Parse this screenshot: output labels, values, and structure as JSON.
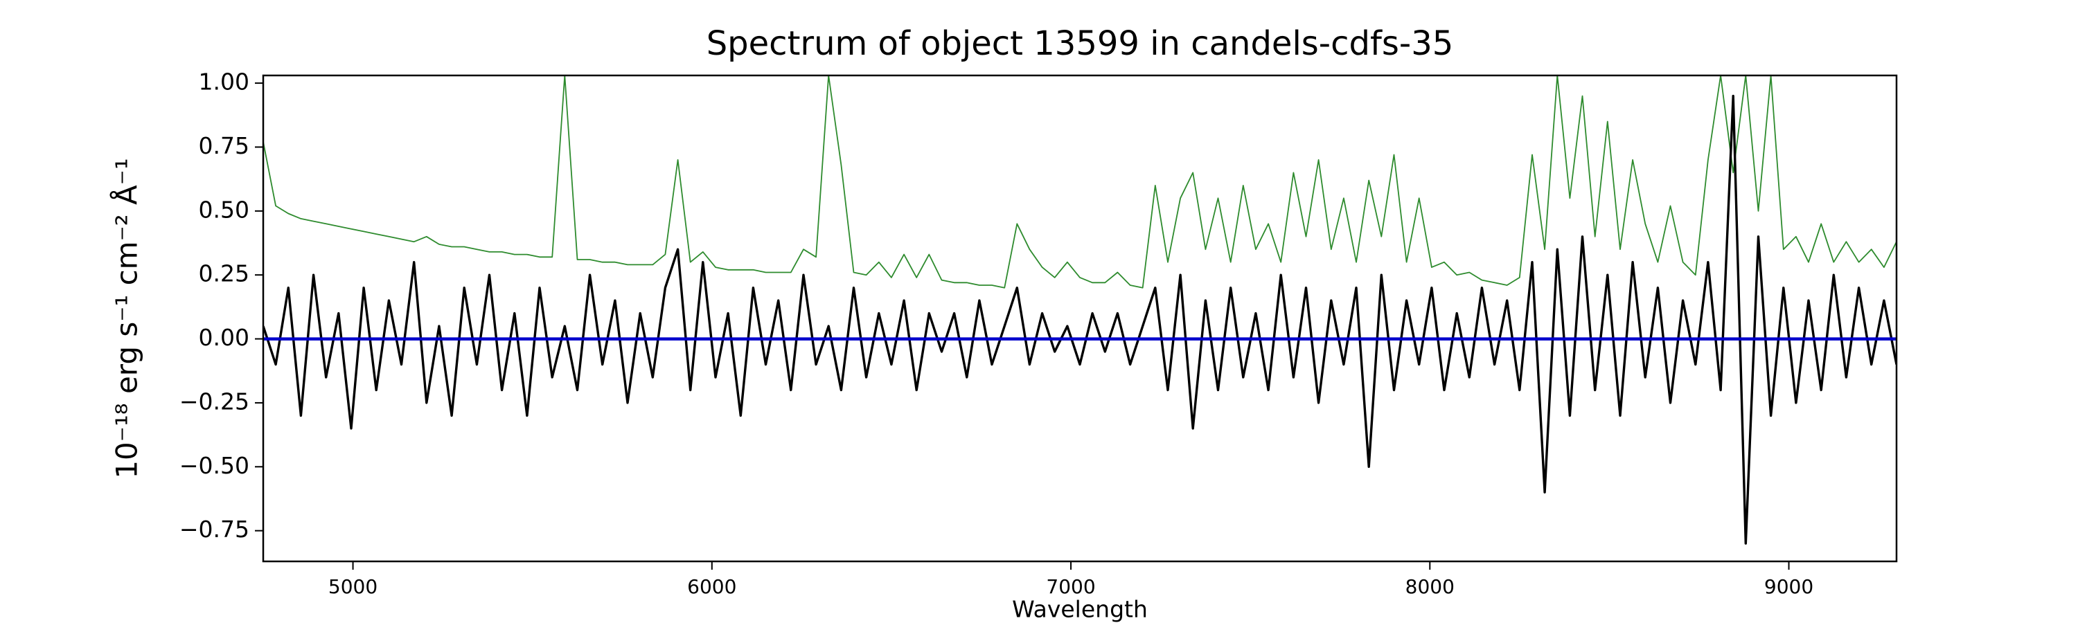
{
  "chart_data": {
    "type": "line",
    "title": "Spectrum of object 13599 in candels-cdfs-35",
    "xlabel": "Wavelength",
    "ylabel": "10⁻¹⁸ erg s⁻¹ cm⁻² Å⁻¹",
    "xlim": [
      4750,
      9300
    ],
    "ylim": [
      -0.87,
      1.03
    ],
    "xticks": [
      5000,
      6000,
      7000,
      8000,
      9000
    ],
    "yticks": [
      {
        "value": 1,
        "label": "1.00"
      },
      {
        "value": 0.75,
        "label": "0.75"
      },
      {
        "value": 0.5,
        "label": "0.50"
      },
      {
        "value": 0.25,
        "label": "0.25"
      },
      {
        "value": 0,
        "label": "0.00"
      },
      {
        "value": -0.25,
        "label": "−0.25"
      },
      {
        "value": -0.5,
        "label": "−0.50"
      },
      {
        "value": -0.75,
        "label": "−0.75"
      }
    ],
    "x": [
      4750,
      4785,
      4820,
      4855,
      4890,
      4925,
      4960,
      4995,
      5030,
      5065,
      5100,
      5135,
      5170,
      5205,
      5240,
      5275,
      5310,
      5345,
      5380,
      5415,
      5450,
      5485,
      5520,
      5555,
      5590,
      5625,
      5660,
      5695,
      5730,
      5765,
      5800,
      5835,
      5870,
      5905,
      5940,
      5975,
      6010,
      6045,
      6080,
      6115,
      6150,
      6185,
      6220,
      6255,
      6290,
      6325,
      6360,
      6395,
      6430,
      6465,
      6500,
      6535,
      6570,
      6605,
      6640,
      6675,
      6710,
      6745,
      6780,
      6815,
      6850,
      6885,
      6920,
      6955,
      6990,
      7025,
      7060,
      7095,
      7130,
      7165,
      7200,
      7235,
      7270,
      7305,
      7340,
      7375,
      7410,
      7445,
      7480,
      7515,
      7550,
      7585,
      7620,
      7655,
      7690,
      7725,
      7760,
      7795,
      7830,
      7865,
      7900,
      7935,
      7970,
      8005,
      8040,
      8075,
      8110,
      8145,
      8180,
      8215,
      8250,
      8285,
      8320,
      8355,
      8390,
      8425,
      8460,
      8495,
      8530,
      8565,
      8600,
      8635,
      8670,
      8705,
      8740,
      8775,
      8810,
      8845,
      8880,
      8915,
      8950,
      8985,
      9020,
      9055,
      9090,
      9125,
      9160,
      9195,
      9230,
      9265,
      9300
    ],
    "series": [
      {
        "color": "#2e8b2e",
        "values": [
          0.77,
          0.52,
          0.49,
          0.47,
          0.46,
          0.45,
          0.44,
          0.43,
          0.42,
          0.41,
          0.4,
          0.39,
          0.38,
          0.4,
          0.37,
          0.36,
          0.36,
          0.35,
          0.34,
          0.34,
          0.33,
          0.33,
          0.32,
          0.32,
          1.03,
          0.31,
          0.31,
          0.3,
          0.3,
          0.29,
          0.29,
          0.29,
          0.33,
          0.7,
          0.3,
          0.34,
          0.28,
          0.27,
          0.27,
          0.27,
          0.26,
          0.26,
          0.26,
          0.35,
          0.32,
          1.03,
          0.68,
          0.26,
          0.25,
          0.3,
          0.24,
          0.33,
          0.24,
          0.33,
          0.23,
          0.22,
          0.22,
          0.21,
          0.21,
          0.2,
          0.45,
          0.35,
          0.28,
          0.24,
          0.3,
          0.24,
          0.22,
          0.22,
          0.26,
          0.21,
          0.2,
          0.6,
          0.3,
          0.55,
          0.65,
          0.35,
          0.55,
          0.3,
          0.6,
          0.35,
          0.45,
          0.3,
          0.65,
          0.4,
          0.7,
          0.35,
          0.55,
          0.3,
          0.62,
          0.4,
          0.72,
          0.3,
          0.55,
          0.28,
          0.3,
          0.25,
          0.26,
          0.23,
          0.22,
          0.21,
          0.24,
          0.72,
          0.35,
          1.03,
          0.55,
          0.95,
          0.4,
          0.85,
          0.35,
          0.7,
          0.45,
          0.3,
          0.52,
          0.3,
          0.25,
          0.7,
          1.03,
          0.65,
          1.03,
          0.5,
          1.03,
          0.35,
          0.4,
          0.3,
          0.45,
          0.3,
          0.38,
          0.3,
          0.35,
          0.28,
          0.38
        ]
      },
      {
        "color": "#000000",
        "values": [
          0.05,
          -0.1,
          0.2,
          -0.3,
          0.25,
          -0.15,
          0.1,
          -0.35,
          0.2,
          -0.2,
          0.15,
          -0.1,
          0.3,
          -0.25,
          0.05,
          -0.3,
          0.2,
          -0.1,
          0.25,
          -0.2,
          0.1,
          -0.3,
          0.2,
          -0.15,
          0.05,
          -0.2,
          0.25,
          -0.1,
          0.15,
          -0.25,
          0.1,
          -0.15,
          0.2,
          0.35,
          -0.2,
          0.3,
          -0.15,
          0.1,
          -0.3,
          0.2,
          -0.1,
          0.15,
          -0.2,
          0.25,
          -0.1,
          0.05,
          -0.2,
          0.2,
          -0.15,
          0.1,
          -0.1,
          0.15,
          -0.2,
          0.1,
          -0.05,
          0.1,
          -0.15,
          0.15,
          -0.1,
          0.05,
          0.2,
          -0.1,
          0.1,
          -0.05,
          0.05,
          -0.1,
          0.1,
          -0.05,
          0.1,
          -0.1,
          0.05,
          0.2,
          -0.2,
          0.25,
          -0.35,
          0.15,
          -0.2,
          0.2,
          -0.15,
          0.1,
          -0.2,
          0.25,
          -0.15,
          0.2,
          -0.25,
          0.15,
          -0.1,
          0.2,
          -0.5,
          0.25,
          -0.2,
          0.15,
          -0.1,
          0.2,
          -0.2,
          0.1,
          -0.15,
          0.2,
          -0.1,
          0.15,
          -0.2,
          0.3,
          -0.6,
          0.35,
          -0.3,
          0.4,
          -0.2,
          0.25,
          -0.3,
          0.3,
          -0.15,
          0.2,
          -0.25,
          0.15,
          -0.1,
          0.3,
          -0.2,
          0.95,
          -0.8,
          0.4,
          -0.3,
          0.2,
          -0.25,
          0.15,
          -0.2,
          0.25,
          -0.15,
          0.2,
          -0.1,
          0.15,
          -0.1
        ]
      },
      {
        "color": "#0000cc",
        "x": [
          4750,
          9300
        ],
        "values": [
          0,
          0
        ]
      }
    ]
  }
}
